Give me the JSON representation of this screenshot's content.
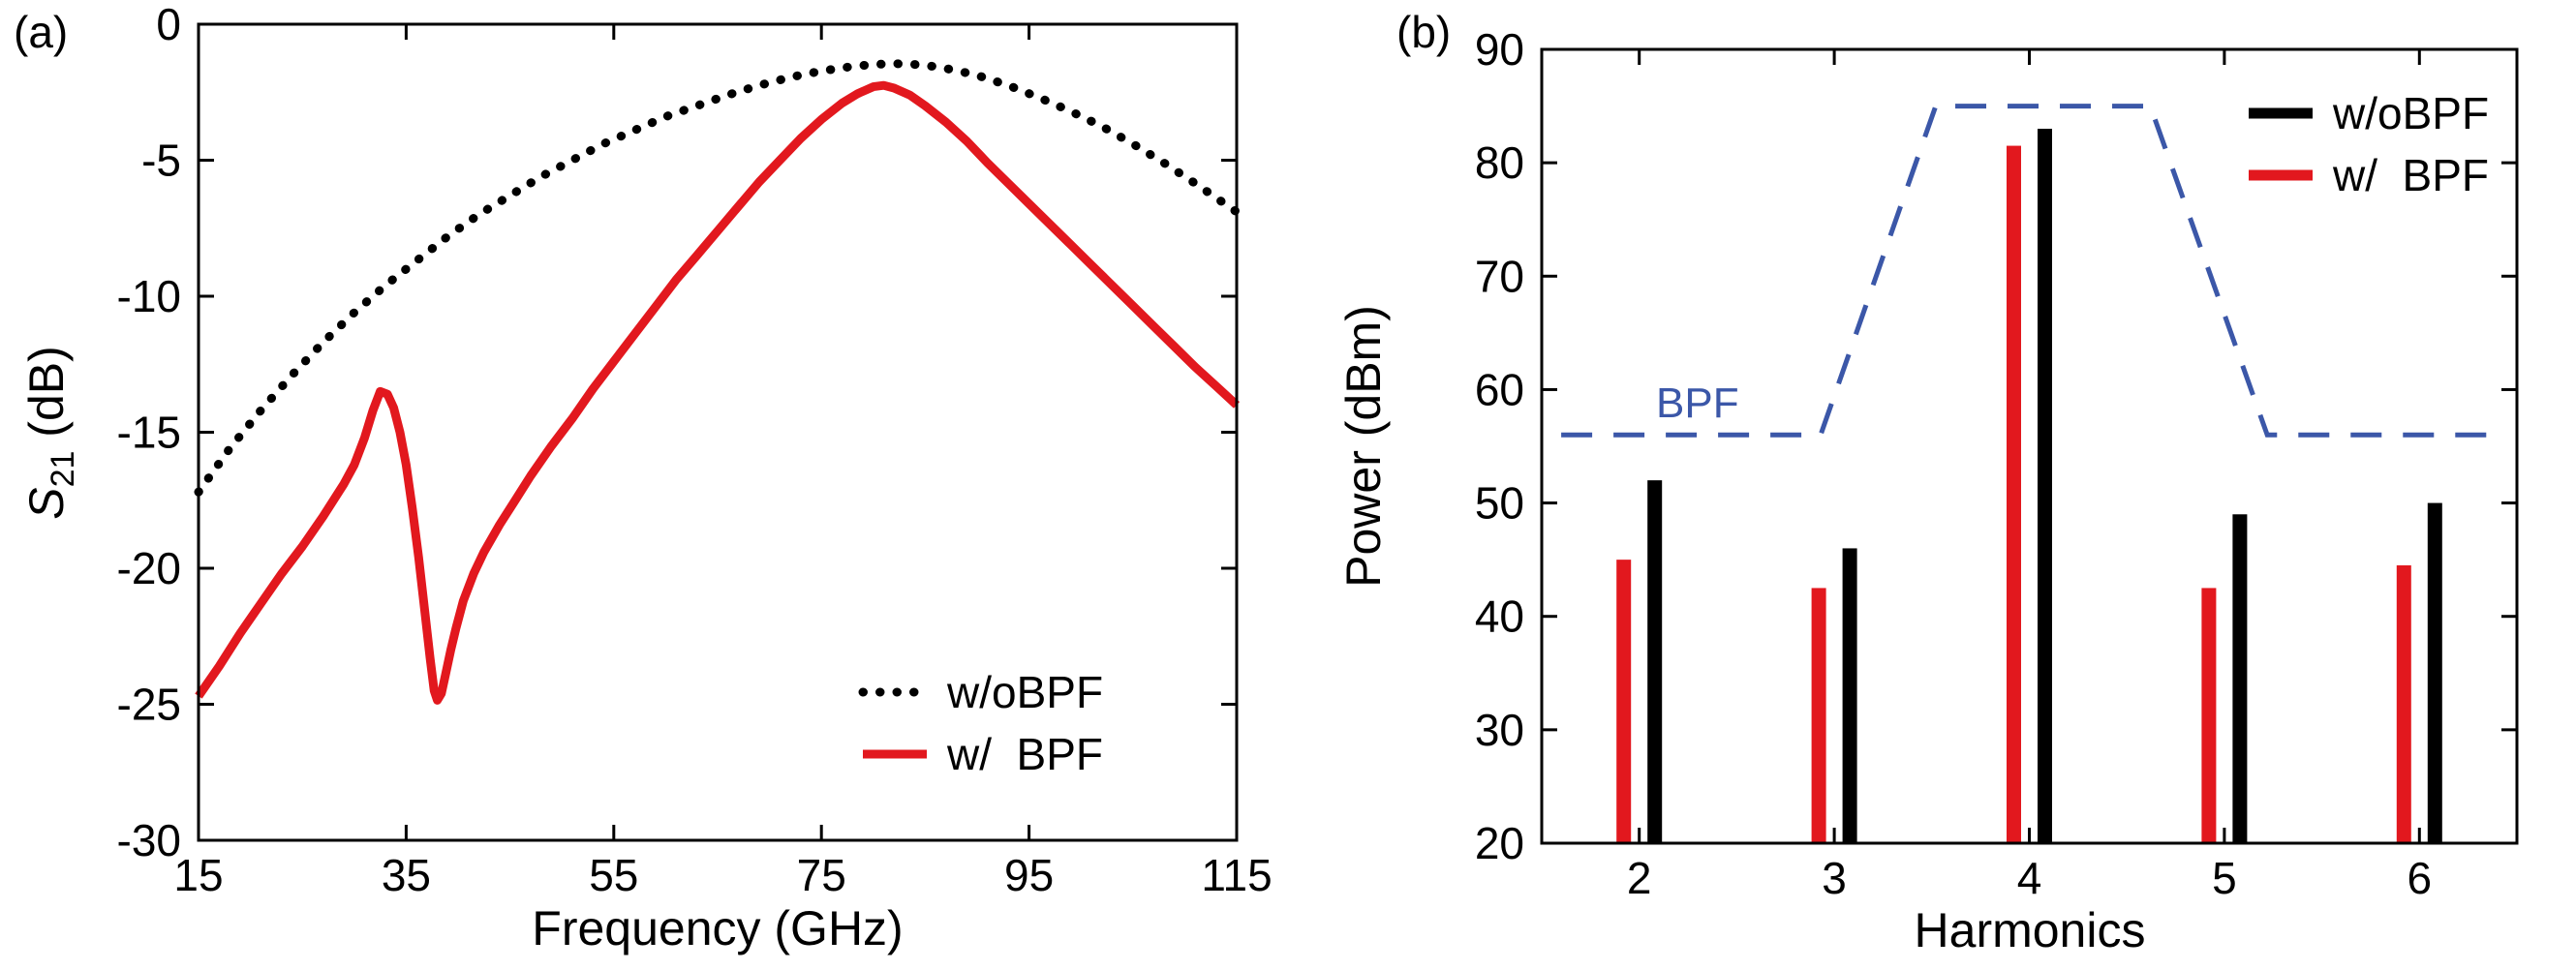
{
  "panel_labels": {
    "a": "(a)",
    "b": "(b)"
  },
  "colors": {
    "black": "#000000",
    "red": "#e2181e",
    "blue": "#3b57a8",
    "background": "#ffffff"
  },
  "chart_data": [
    {
      "type": "line",
      "panel": "(a)",
      "xlabel": "Frequency (GHz)",
      "ylabel": "S21 (dB)",
      "ylabel_parts": {
        "prefix": "S",
        "sub": "21",
        "suffix": " (dB)"
      },
      "xlim": [
        15,
        115
      ],
      "ylim": [
        -30,
        0
      ],
      "xticks": [
        15,
        35,
        55,
        75,
        95,
        115
      ],
      "yticks": [
        0,
        -5,
        -10,
        -15,
        -20,
        -25,
        -30
      ],
      "grid": false,
      "legend_position": "bottom-right",
      "series": [
        {
          "name": "w/oBPF",
          "color": "#000000",
          "line_style": "dotted",
          "points": [
            [
              15,
              -17.2
            ],
            [
              18,
              -15.6
            ],
            [
              21,
              -14.2
            ],
            [
              24,
              -12.9
            ],
            [
              27,
              -11.7
            ],
            [
              30,
              -10.6
            ],
            [
              33,
              -9.6
            ],
            [
              36,
              -8.7
            ],
            [
              39,
              -7.8
            ],
            [
              42,
              -7.0
            ],
            [
              45,
              -6.3
            ],
            [
              48,
              -5.6
            ],
            [
              51,
              -5.0
            ],
            [
              54,
              -4.4
            ],
            [
              57,
              -3.9
            ],
            [
              60,
              -3.4
            ],
            [
              63,
              -3.0
            ],
            [
              66,
              -2.6
            ],
            [
              69,
              -2.25
            ],
            [
              72,
              -1.95
            ],
            [
              75,
              -1.72
            ],
            [
              78,
              -1.55
            ],
            [
              80,
              -1.48
            ],
            [
              82,
              -1.45
            ],
            [
              84,
              -1.48
            ],
            [
              86,
              -1.56
            ],
            [
              88,
              -1.7
            ],
            [
              90,
              -1.88
            ],
            [
              93,
              -2.25
            ],
            [
              96,
              -2.7
            ],
            [
              99,
              -3.2
            ],
            [
              102,
              -3.75
            ],
            [
              105,
              -4.4
            ],
            [
              108,
              -5.1
            ],
            [
              111,
              -5.85
            ],
            [
              115,
              -6.9
            ]
          ]
        },
        {
          "name": "w/  BPF",
          "color": "#e2181e",
          "line_style": "solid",
          "points": [
            [
              15,
              -24.7
            ],
            [
              17,
              -23.6
            ],
            [
              19,
              -22.4
            ],
            [
              21,
              -21.3
            ],
            [
              23,
              -20.2
            ],
            [
              25,
              -19.2
            ],
            [
              27,
              -18.1
            ],
            [
              29,
              -16.9
            ],
            [
              30,
              -16.2
            ],
            [
              31,
              -15.2
            ],
            [
              31.8,
              -14.2
            ],
            [
              32.5,
              -13.5
            ],
            [
              33.2,
              -13.6
            ],
            [
              33.8,
              -14.1
            ],
            [
              34.4,
              -15.0
            ],
            [
              35,
              -16.2
            ],
            [
              35.6,
              -17.8
            ],
            [
              36.2,
              -19.6
            ],
            [
              36.8,
              -21.6
            ],
            [
              37.3,
              -23.3
            ],
            [
              37.7,
              -24.5
            ],
            [
              38,
              -24.85
            ],
            [
              38.4,
              -24.6
            ],
            [
              38.8,
              -23.9
            ],
            [
              39.3,
              -23.0
            ],
            [
              39.8,
              -22.2
            ],
            [
              40.5,
              -21.2
            ],
            [
              41.5,
              -20.2
            ],
            [
              42.5,
              -19.4
            ],
            [
              44,
              -18.4
            ],
            [
              45.5,
              -17.5
            ],
            [
              47,
              -16.6
            ],
            [
              49,
              -15.5
            ],
            [
              51,
              -14.5
            ],
            [
              53,
              -13.4
            ],
            [
              55,
              -12.4
            ],
            [
              57,
              -11.4
            ],
            [
              59,
              -10.4
            ],
            [
              61,
              -9.4
            ],
            [
              63,
              -8.5
            ],
            [
              65,
              -7.6
            ],
            [
              67,
              -6.7
            ],
            [
              69,
              -5.8
            ],
            [
              71,
              -5.0
            ],
            [
              73,
              -4.2
            ],
            [
              75,
              -3.5
            ],
            [
              77,
              -2.9
            ],
            [
              78.5,
              -2.55
            ],
            [
              80,
              -2.3
            ],
            [
              81,
              -2.25
            ],
            [
              82,
              -2.35
            ],
            [
              83.5,
              -2.6
            ],
            [
              85,
              -3.0
            ],
            [
              87,
              -3.6
            ],
            [
              89,
              -4.3
            ],
            [
              91,
              -5.1
            ],
            [
              93,
              -5.85
            ],
            [
              95,
              -6.6
            ],
            [
              97,
              -7.35
            ],
            [
              99,
              -8.1
            ],
            [
              101,
              -8.85
            ],
            [
              103,
              -9.6
            ],
            [
              105,
              -10.35
            ],
            [
              107,
              -11.1
            ],
            [
              109,
              -11.85
            ],
            [
              111,
              -12.6
            ],
            [
              113,
              -13.3
            ],
            [
              115,
              -14.0
            ]
          ]
        }
      ]
    },
    {
      "type": "bar",
      "panel": "(b)",
      "xlabel": "Harmonics",
      "ylabel": "Power (dBm)",
      "xlim": [
        1.5,
        6.5
      ],
      "ylim": [
        20,
        90
      ],
      "xticks": [
        2,
        3,
        4,
        5,
        6
      ],
      "yticks": [
        20,
        30,
        40,
        50,
        60,
        70,
        80,
        90
      ],
      "categories": [
        2,
        3,
        4,
        5,
        6
      ],
      "grid": false,
      "legend_position": "top-right",
      "series": [
        {
          "name": "w/oBPF",
          "color": "#000000",
          "values": [
            52,
            46,
            83,
            49,
            50
          ]
        },
        {
          "name": "w/  BPF",
          "color": "#e2181e",
          "values": [
            45,
            42.5,
            81.5,
            42.5,
            44.5
          ]
        }
      ],
      "overlay_line": {
        "name": "BPF",
        "color": "#3b57a8",
        "line_style": "dashed",
        "points": [
          [
            1.6,
            56
          ],
          [
            2.93,
            56
          ],
          [
            3.52,
            85
          ],
          [
            4.62,
            85
          ],
          [
            5.22,
            56
          ],
          [
            6.42,
            56
          ]
        ]
      }
    }
  ]
}
